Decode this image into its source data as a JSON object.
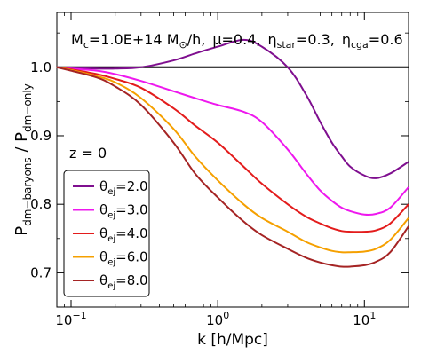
{
  "chart_data": {
    "type": "line",
    "title": "",
    "xlabel": "k [h/Mpc]",
    "ylabel": {
      "main": "P",
      "num_sub": "dm−baryons",
      "sep": " / P",
      "den_sub": "dm−only"
    },
    "xscale": "log",
    "xlim": [
      0.08,
      20
    ],
    "ylim": [
      0.65,
      1.08
    ],
    "xticks": [
      {
        "value": 0.1,
        "base": "10",
        "exp": "−1"
      },
      {
        "value": 1,
        "base": "10",
        "exp": "0"
      },
      {
        "value": 10,
        "base": "10",
        "exp": "1"
      }
    ],
    "yticks": [
      {
        "value": 0.7,
        "label": "0.7"
      },
      {
        "value": 0.8,
        "label": "0.8"
      },
      {
        "value": 0.9,
        "label": "0.9"
      },
      {
        "value": 1.0,
        "label": "1.0"
      }
    ],
    "reference_line": {
      "y": 1.0,
      "color": "#000000"
    },
    "annotations": {
      "params": "M c =1.0E+14 M⊙/h,  μ=0.4,  ηstar=0.3,  ηcga=0.6",
      "params_parts": {
        "m": "M",
        "m_sub": "c",
        "m_val": "=1.0E+14 M",
        "m_sun": "⊙",
        "m_unit": "/h,",
        "mu": "μ=0.4,",
        "eta": "η",
        "eta_star_sub": "star",
        "eta_star_val": "=0.3,",
        "eta_cga_sub": "cga",
        "eta_cga_val": "=0.6"
      },
      "redshift": "z = 0"
    },
    "legend": {
      "position": "bottom-left",
      "symbol": "θ",
      "symbol_sub": "ej"
    },
    "x": [
      0.08,
      0.1,
      0.15,
      0.2,
      0.3,
      0.5,
      0.7,
      1.0,
      1.5,
      2.0,
      3.0,
      4.0,
      5.0,
      6.0,
      7.0,
      8.0,
      10.0,
      12.0,
      15.0,
      20.0
    ],
    "series": [
      {
        "name": "=2.0",
        "color": "#7f0f8f",
        "values": [
          1.0,
          0.999,
          0.998,
          0.998,
          1.0,
          1.01,
          1.02,
          1.03,
          1.04,
          1.03,
          1.0,
          0.96,
          0.92,
          0.89,
          0.87,
          0.855,
          0.842,
          0.838,
          0.845,
          0.862
        ]
      },
      {
        "name": "=3.0",
        "color": "#ee18ee",
        "values": [
          1.0,
          0.998,
          0.995,
          0.99,
          0.98,
          0.965,
          0.955,
          0.945,
          0.935,
          0.92,
          0.88,
          0.845,
          0.82,
          0.805,
          0.795,
          0.79,
          0.785,
          0.786,
          0.795,
          0.825
        ]
      },
      {
        "name": "=4.0",
        "color": "#e31c1c",
        "values": [
          1.0,
          0.997,
          0.99,
          0.983,
          0.97,
          0.94,
          0.915,
          0.89,
          0.855,
          0.83,
          0.8,
          0.782,
          0.772,
          0.765,
          0.761,
          0.76,
          0.76,
          0.762,
          0.772,
          0.8
        ]
      },
      {
        "name": "=6.0",
        "color": "#f5a000",
        "values": [
          1.0,
          0.996,
          0.987,
          0.978,
          0.955,
          0.91,
          0.87,
          0.835,
          0.8,
          0.78,
          0.76,
          0.745,
          0.737,
          0.732,
          0.73,
          0.73,
          0.731,
          0.735,
          0.748,
          0.78
        ]
      },
      {
        "name": "=8.0",
        "color": "#a52424",
        "values": [
          1.0,
          0.995,
          0.985,
          0.972,
          0.945,
          0.89,
          0.845,
          0.81,
          0.775,
          0.755,
          0.735,
          0.722,
          0.715,
          0.711,
          0.709,
          0.709,
          0.711,
          0.716,
          0.73,
          0.768
        ]
      }
    ]
  }
}
